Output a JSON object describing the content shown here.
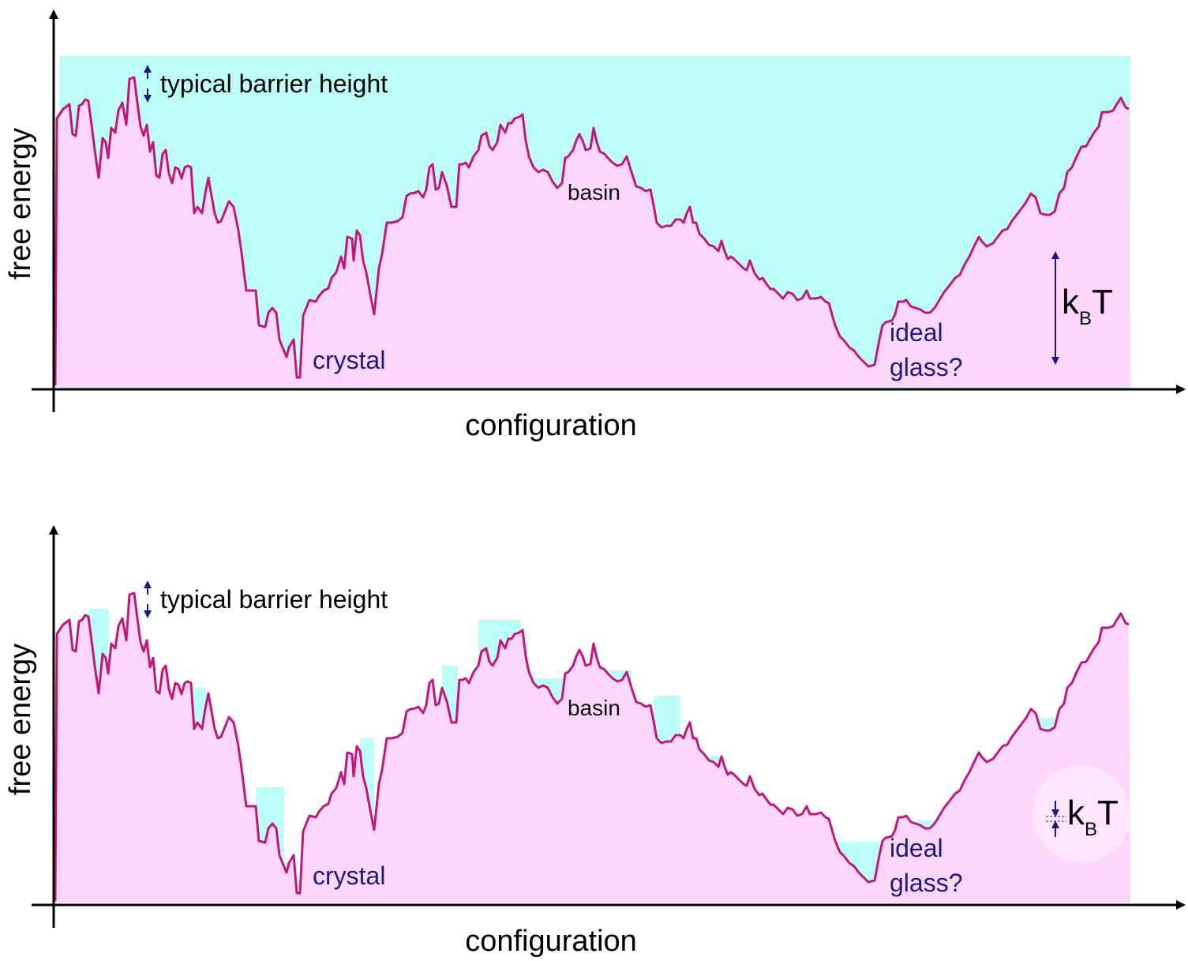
{
  "colors": {
    "landscape_line": "#c0187a",
    "landscape_fill": "#fdd6fb",
    "barrier_fill": "#bdfdf8",
    "annotation_blue": "#1a1a80",
    "axis": "#000000"
  },
  "panels": [
    {
      "ylabel": "free energy",
      "xlabel": "configuration",
      "barrier_label": "typical barrier height",
      "crystal_label": "crystal",
      "basin_label": "basin",
      "ideal_label": "ideal",
      "glass_label": "glass?",
      "kbt_k": "k",
      "kbt_sub": "B",
      "kbt_t": "T",
      "fill_mode": "full"
    },
    {
      "ylabel": "free energy",
      "xlabel": "configuration",
      "barrier_label": "typical barrier height",
      "crystal_label": "crystal",
      "basin_label": "basin",
      "ideal_label": "ideal",
      "glass_label": "glass?",
      "kbt_k": "k",
      "kbt_sub": "B",
      "kbt_t": "T",
      "fill_mode": "pools"
    }
  ]
}
